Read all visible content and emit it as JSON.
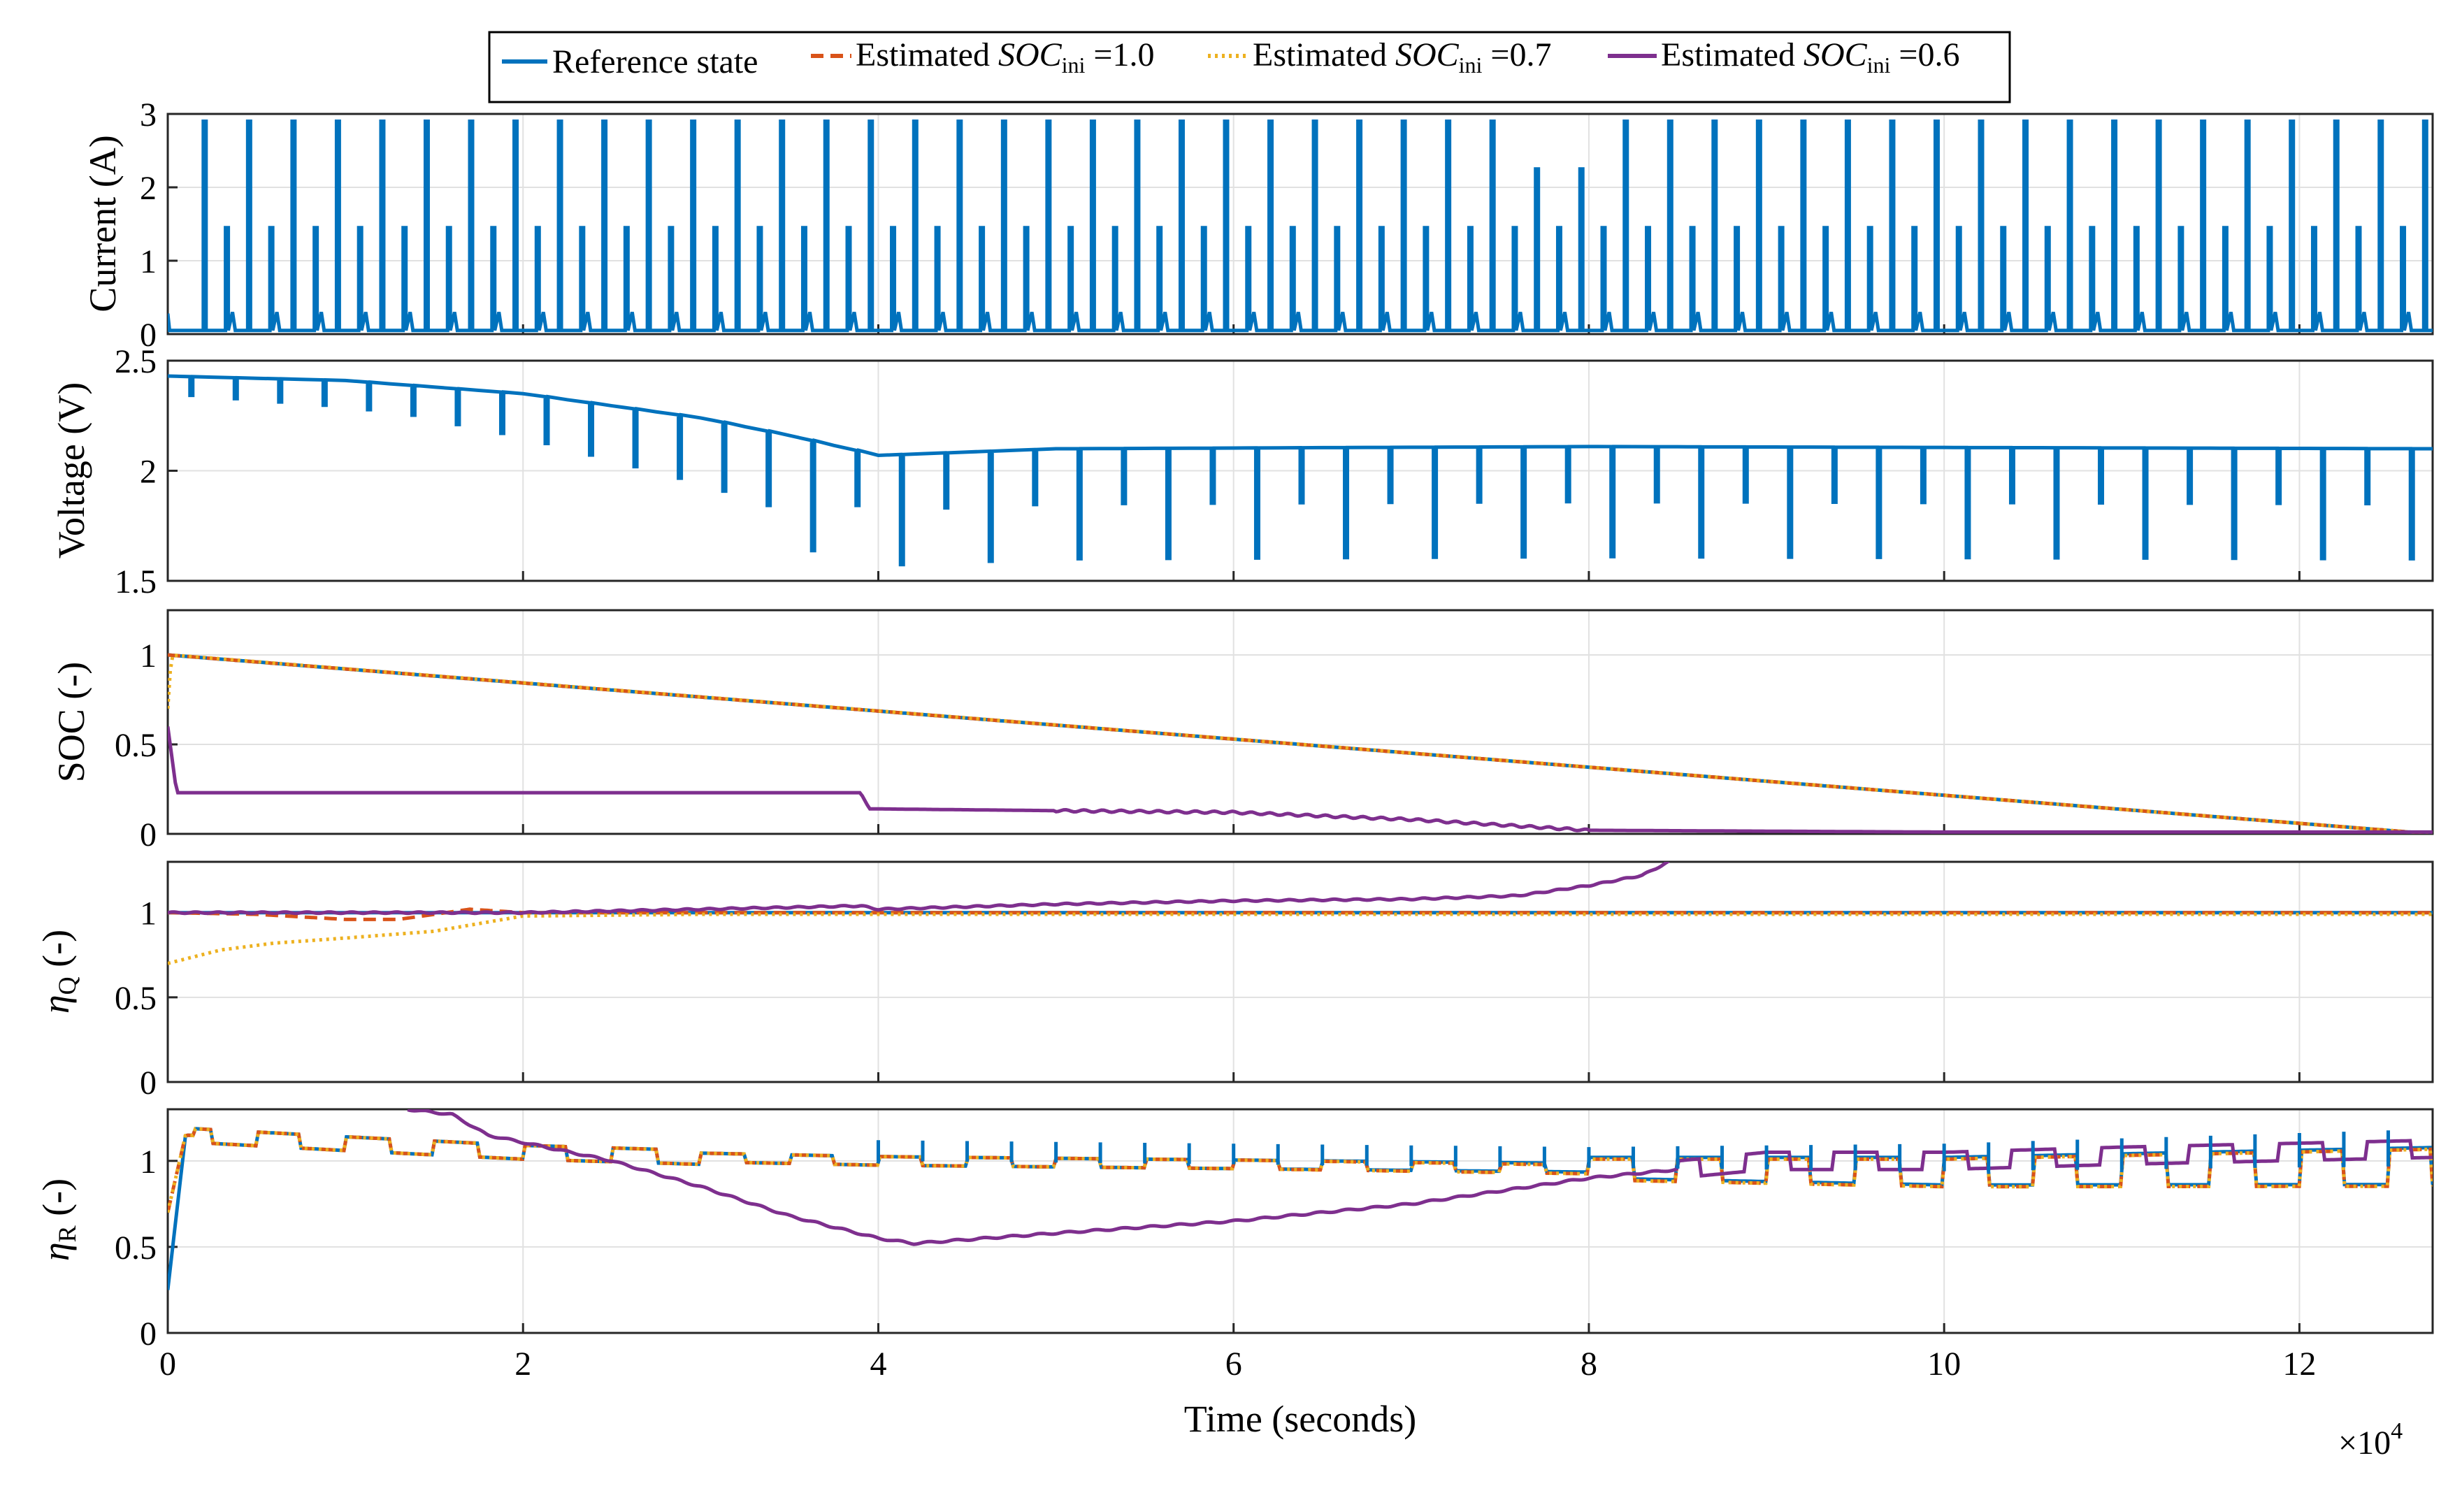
{
  "colors": {
    "reference": "#0072BD",
    "soc_1_0": "#D95319",
    "soc_0_7": "#EDB120",
    "soc_0_6": "#7E2F8E"
  },
  "legend": {
    "items": [
      {
        "key": "reference",
        "prefix": "Reference state",
        "style": "solid"
      },
      {
        "key": "soc_1_0",
        "prefix": "Estimated ",
        "italic": "SOC",
        "sub": "ini",
        "suffix": " =1.0",
        "style": "dashed"
      },
      {
        "key": "soc_0_7",
        "prefix": "Estimated ",
        "italic": "SOC",
        "sub": "ini",
        "suffix": " =0.7",
        "style": "dotted"
      },
      {
        "key": "soc_0_6",
        "prefix": "Estimated ",
        "italic": "SOC",
        "sub": "ini",
        "suffix": " =0.6",
        "style": "solid"
      }
    ]
  },
  "x_axis": {
    "label": "Time (seconds)",
    "multiplier": "×10",
    "multiplier_exp": "4",
    "ticks": [
      "0",
      "2",
      "4",
      "6",
      "8",
      "10",
      "12"
    ],
    "range": [
      0,
      12.75
    ]
  },
  "chart_data": [
    {
      "id": "current",
      "type": "line",
      "ylabel": "Current (A)",
      "ylim": [
        0,
        3
      ],
      "yticks": [
        "0",
        "1",
        "2",
        "3"
      ],
      "series": [
        {
          "name": "Reference state",
          "description": "periodic current pulses: ~2.9 A peaks every ~2500 s interleaved with ~1.45 A pulses, ~0.05 A baseline; peaks drop to ~2.25 A between 7.5e4 and 8.0e4 s",
          "pulse_peak_A": 2.9,
          "secondary_pulse_A": 1.45,
          "baseline_A": 0.05,
          "reduced_peak_A": 2.25
        }
      ]
    },
    {
      "id": "voltage",
      "type": "line",
      "ylabel": "Voltage (V)",
      "ylim": [
        1.5,
        2.5
      ],
      "yticks": [
        "1.5",
        "2",
        "2.5"
      ],
      "series": [
        {
          "name": "Reference state",
          "envelope_x": [
            0,
            1,
            2,
            3,
            3.5,
            4,
            5,
            8,
            12.75
          ],
          "envelope_y": [
            2.43,
            2.41,
            2.35,
            2.24,
            2.16,
            2.07,
            2.1,
            2.11,
            2.1
          ],
          "dip_depth_V": [
            0.1,
            0.25,
            0.5
          ]
        }
      ]
    },
    {
      "id": "soc",
      "type": "line",
      "ylabel": "SOC (-)",
      "ylim": [
        0,
        1.25
      ],
      "yticks": [
        "0",
        "0.5",
        "1"
      ],
      "series": [
        {
          "name": "Reference state",
          "x": [
            0,
            12.75
          ],
          "y": [
            1.0,
            0.0
          ]
        },
        {
          "name": "Estimated SOC_ini =1.0",
          "x": [
            0,
            12.75
          ],
          "y": [
            1.0,
            0.0
          ]
        },
        {
          "name": "Estimated SOC_ini =0.7",
          "x": [
            0,
            0.02,
            12.75
          ],
          "y": [
            0.7,
            1.0,
            0.0
          ]
        },
        {
          "name": "Estimated SOC_ini =0.6",
          "x": [
            0,
            0.05,
            3.9,
            3.95,
            6,
            7,
            8,
            10,
            12.75
          ],
          "y": [
            0.6,
            0.23,
            0.23,
            0.14,
            0.12,
            0.08,
            0.02,
            0.01,
            0.01
          ]
        }
      ]
    },
    {
      "id": "etaQ",
      "type": "line",
      "ylabel": "η",
      "ylabel_sub": "Q",
      "ylabel_suffix": " (-)",
      "ylim": [
        0,
        1.3
      ],
      "yticks": [
        "0",
        "0.5",
        "1"
      ],
      "series": [
        {
          "name": "Reference state",
          "x": [
            0,
            12.75
          ],
          "y": [
            1.0,
            1.0
          ]
        },
        {
          "name": "Estimated SOC_ini =1.0",
          "x": [
            0,
            0.5,
            1,
            1.3,
            1.7,
            2,
            3,
            12.75
          ],
          "y": [
            1.0,
            0.99,
            0.96,
            0.96,
            1.02,
            1.0,
            1.0,
            1.0
          ]
        },
        {
          "name": "Estimated SOC_ini =0.7",
          "x": [
            0,
            0.3,
            0.6,
            1,
            1.5,
            2,
            3,
            12.75
          ],
          "y": [
            0.7,
            0.78,
            0.82,
            0.85,
            0.89,
            0.98,
            0.99,
            0.99
          ]
        },
        {
          "name": "Estimated SOC_ini =0.6",
          "x": [
            0,
            2,
            3,
            3.9,
            4,
            5,
            6,
            7,
            7.6,
            8,
            8.3,
            8.45
          ],
          "y": [
            1.0,
            1.0,
            1.02,
            1.04,
            1.02,
            1.05,
            1.07,
            1.08,
            1.1,
            1.16,
            1.22,
            1.3
          ]
        }
      ]
    },
    {
      "id": "etaR",
      "type": "line",
      "ylabel": "η",
      "ylabel_sub": "R",
      "ylabel_suffix": " (-)",
      "ylim": [
        0,
        1.3
      ],
      "yticks": [
        "0",
        "0.5",
        "1"
      ],
      "series": [
        {
          "name": "Reference state",
          "x": [
            0,
            0.1,
            1,
            2,
            3,
            4,
            6,
            8,
            10,
            12.75
          ],
          "y": [
            0.25,
            1.15,
            1.1,
            1.05,
            1.02,
            1.0,
            0.98,
            0.96,
            0.94,
            0.97
          ]
        },
        {
          "name": "Estimated SOC_ini =1.0",
          "x": [
            0,
            0.1,
            1,
            2,
            3,
            4,
            6,
            8,
            10,
            12.75
          ],
          "y": [
            0.7,
            1.15,
            1.1,
            1.05,
            1.02,
            1.0,
            0.98,
            0.95,
            0.93,
            0.96
          ]
        },
        {
          "name": "Estimated SOC_ini =0.7",
          "x": [
            0,
            0.1,
            1,
            2,
            3,
            4,
            6,
            8,
            10,
            12.75
          ],
          "y": [
            0.7,
            1.15,
            1.1,
            1.05,
            1.02,
            1.0,
            0.98,
            0.95,
            0.93,
            0.96
          ]
        },
        {
          "name": "Estimated SOC_ini =0.6",
          "x": [
            1.35,
            1.6,
            1.8,
            2.5,
            3,
            3.5,
            4,
            4.2,
            5,
            6,
            7,
            8,
            9,
            10,
            11,
            12.75
          ],
          "y": [
            1.3,
            1.27,
            1.15,
            1.0,
            0.85,
            0.68,
            0.55,
            0.52,
            0.58,
            0.65,
            0.75,
            0.9,
            1.0,
            1.0,
            1.03,
            1.07
          ]
        }
      ]
    }
  ]
}
